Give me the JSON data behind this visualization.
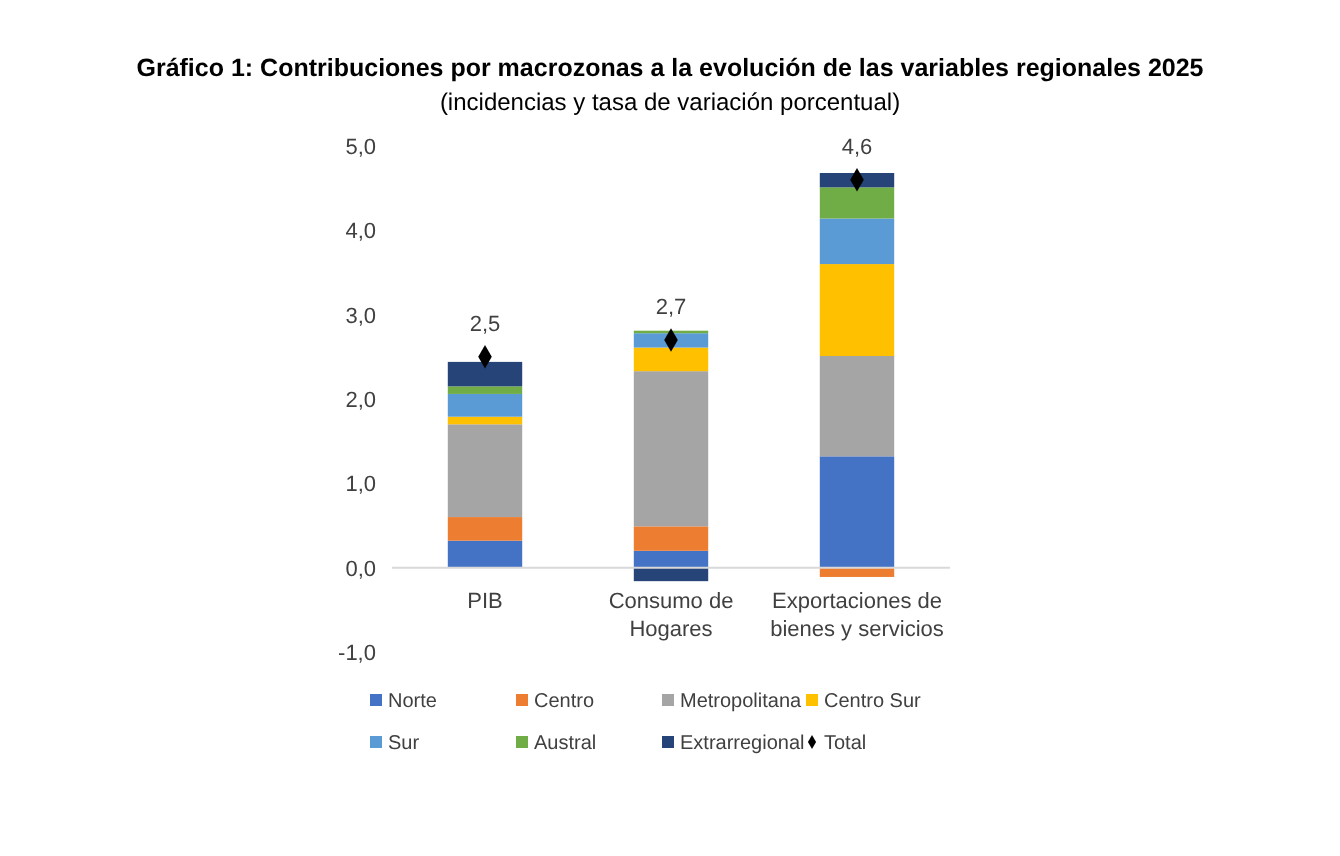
{
  "chart_data": {
    "type": "bar",
    "stacked": true,
    "title": "Gráfico 1: Contribuciones por macrozonas a la evolución de las variables regionales 2025",
    "subtitle": "(incidencias y tasa de variación porcentual)",
    "categories": [
      "PIB",
      "Consumo de Hogares",
      "Exportaciones de bienes y servicios"
    ],
    "ylim": [
      -1,
      5
    ],
    "yticks": [
      {
        "value": -1,
        "label": "-1,0"
      },
      {
        "value": 0,
        "label": "0,0"
      },
      {
        "value": 1,
        "label": "1,0"
      },
      {
        "value": 2,
        "label": "2,0"
      },
      {
        "value": 3,
        "label": "3,0"
      },
      {
        "value": 4,
        "label": "4,0"
      },
      {
        "value": 5,
        "label": "5,0"
      }
    ],
    "grid": false,
    "legend": "bottom",
    "series": [
      {
        "name": "Norte",
        "color": "#4472c4",
        "values": [
          0.32,
          0.2,
          1.32
        ]
      },
      {
        "name": "Centro",
        "color": "#ed7d31",
        "values": [
          0.28,
          0.29,
          -0.11
        ]
      },
      {
        "name": "Metropolitana",
        "color": "#a5a5a5",
        "values": [
          1.1,
          1.84,
          1.19
        ]
      },
      {
        "name": "Centro Sur",
        "color": "#ffc000",
        "values": [
          0.09,
          0.28,
          1.09
        ]
      },
      {
        "name": "Sur",
        "color": "#5b9bd5",
        "values": [
          0.27,
          0.17,
          0.54
        ]
      },
      {
        "name": "Austral",
        "color": "#70ad47",
        "values": [
          0.09,
          0.03,
          0.37
        ]
      },
      {
        "name": "Extrarregional",
        "color": "#264478",
        "values": [
          0.29,
          -0.16,
          0.17
        ]
      },
      {
        "name": "Total",
        "type": "scatter",
        "marker": "diamond",
        "color": "#000000",
        "values": [
          2.5,
          2.7,
          4.6
        ],
        "value_labels": [
          "2,5",
          "2,7",
          "4,6"
        ]
      }
    ]
  }
}
